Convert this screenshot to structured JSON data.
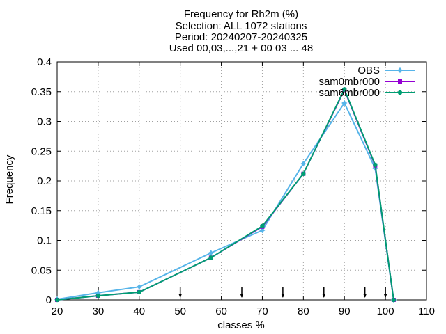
{
  "chart_data": {
    "type": "line",
    "title_lines": [
      "Frequency  for Rh2m (%)",
      "Selection: ALL   1072 stations",
      "Period: 20240207-20240325",
      "Used 00,03,...,21 + 00 03 ... 48"
    ],
    "xlabel": "classes %",
    "ylabel": "Frequency",
    "xlim": [
      20,
      110
    ],
    "ylim": [
      0,
      0.4
    ],
    "xticks": [
      20,
      30,
      40,
      50,
      60,
      70,
      80,
      90,
      100,
      110
    ],
    "yticks": [
      0,
      0.05,
      0.1,
      0.15,
      0.2,
      0.25,
      0.3,
      0.35,
      0.4
    ],
    "ytick_labels": [
      "0",
      "0.05",
      "0.1",
      "0.15",
      "0.2",
      "0.25",
      "0.3",
      "0.35",
      "0.4"
    ],
    "grid": true,
    "legend_position": "top-right",
    "class_limit_arrows": [
      30,
      50,
      65,
      75,
      85,
      95,
      100
    ],
    "series": [
      {
        "name": "OBS",
        "color": "#56b4e9",
        "marker": "star",
        "x": [
          20,
          30,
          40,
          57.5,
          70,
          80,
          90,
          97.5,
          102
        ],
        "y": [
          0.001,
          0.012,
          0.022,
          0.079,
          0.117,
          0.229,
          0.331,
          0.221,
          0.0
        ]
      },
      {
        "name": "sam0mbr000",
        "color": "#9400d3",
        "marker": "square",
        "x": [
          20,
          30,
          40,
          57.5,
          70,
          80,
          90,
          97.5,
          102
        ],
        "y": [
          0.0,
          0.007,
          0.013,
          0.071,
          0.123,
          0.212,
          0.353,
          0.226,
          0.0
        ]
      },
      {
        "name": "sam6mbr000",
        "color": "#009e73",
        "marker": "circle",
        "x": [
          20,
          30,
          40,
          57.5,
          70,
          80,
          90,
          97.5,
          102
        ],
        "y": [
          0.0,
          0.007,
          0.013,
          0.071,
          0.124,
          0.212,
          0.354,
          0.227,
          0.0
        ]
      }
    ]
  }
}
